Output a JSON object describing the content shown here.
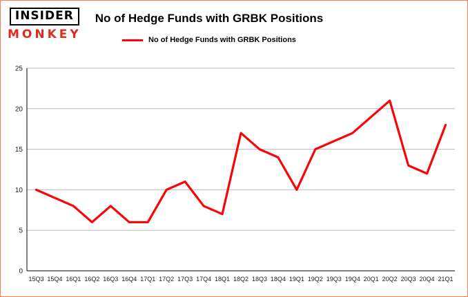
{
  "header": {
    "logo_line1": "INSIDER",
    "logo_line2": "MONKEY",
    "title": "No of Hedge Funds with GRBK Positions"
  },
  "legend": {
    "label": "No of Hedge Funds with GRBK Positions"
  },
  "colors": {
    "series": "#fa0505",
    "border": "#ff7753",
    "logo_red": "#e02b20",
    "grid": "#b9b9b9",
    "axis": "#000000"
  },
  "chart_data": {
    "type": "line",
    "title": "No of Hedge Funds with GRBK Positions",
    "categories": [
      "15Q3",
      "15Q4",
      "16Q1",
      "16Q2",
      "16Q3",
      "16Q4",
      "17Q1",
      "17Q2",
      "17Q3",
      "17Q4",
      "18Q1",
      "18Q2",
      "18Q3",
      "18Q4",
      "19Q1",
      "19Q2",
      "19Q3",
      "19Q4",
      "20Q1",
      "20Q2",
      "20Q3",
      "20Q4",
      "21Q1"
    ],
    "values": [
      10,
      9,
      8,
      6,
      8,
      6,
      6,
      10,
      11,
      8,
      7,
      17,
      15,
      14,
      10,
      15,
      16,
      17,
      19,
      21,
      13,
      12,
      18
    ],
    "xlabel": "",
    "ylabel": "",
    "ylim": [
      0,
      25
    ],
    "yticks": [
      0,
      5,
      10,
      15,
      20,
      25
    ],
    "grid": true,
    "legend_position": "top"
  }
}
